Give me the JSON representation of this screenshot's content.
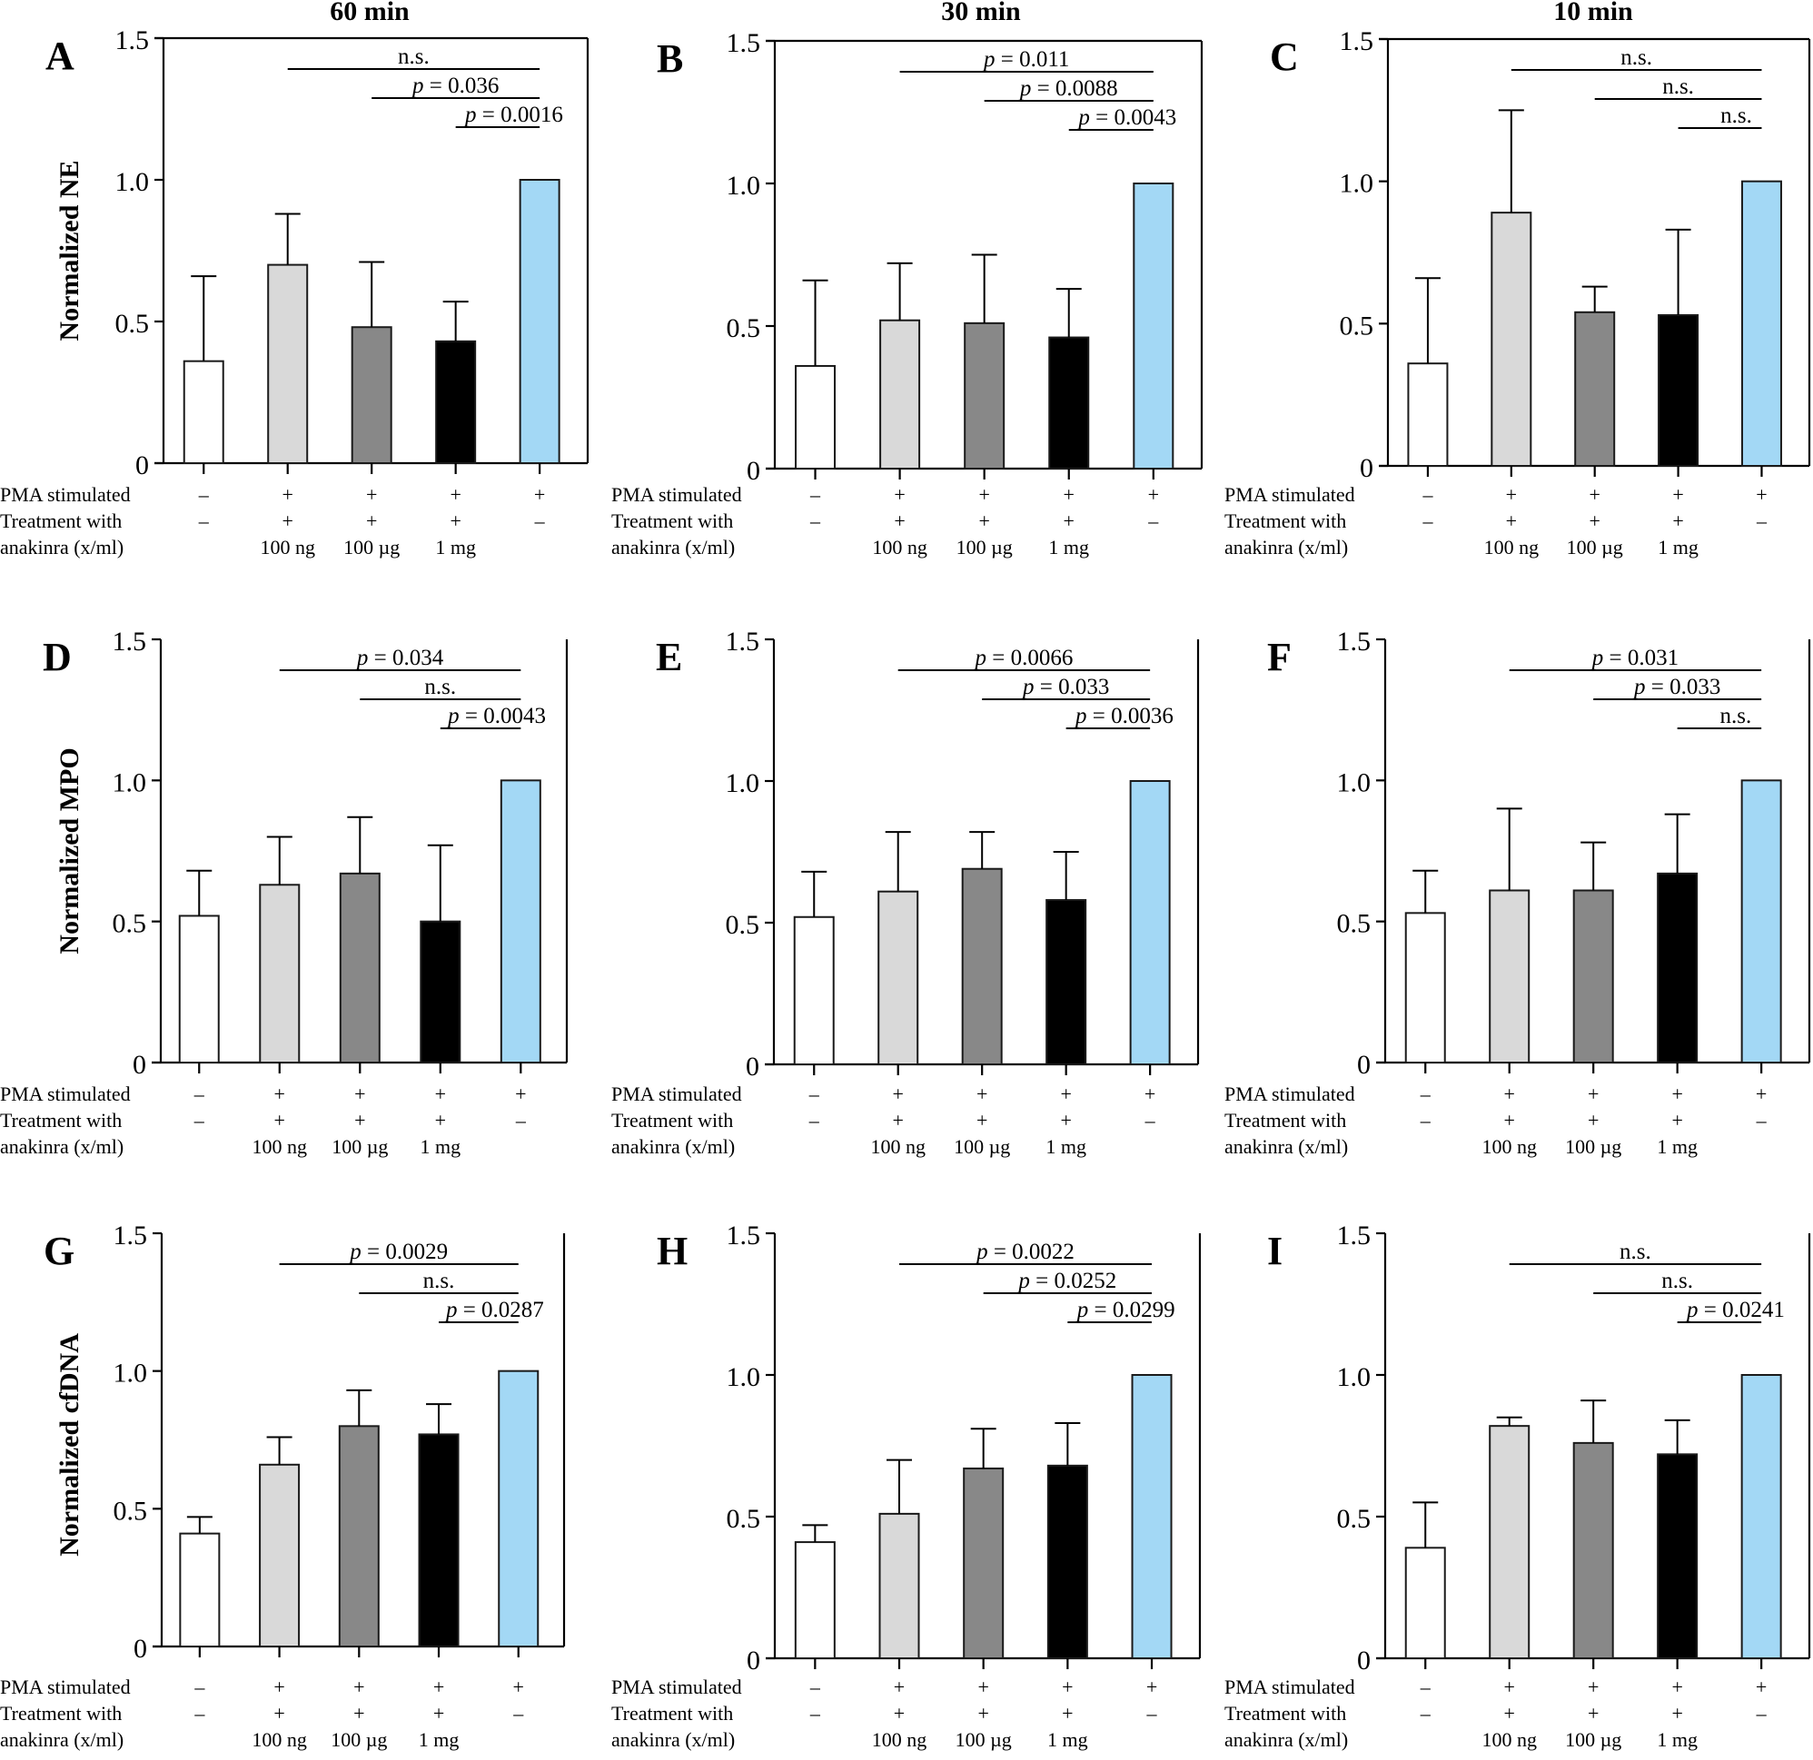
{
  "figure": {
    "column_titles": [
      "60 min",
      "30 min",
      "10 min"
    ],
    "row_ylabels": [
      "Normalized NE",
      "Normalized MPO",
      "Normalized cfDNA"
    ],
    "group_colors": [
      "#ffffff",
      "#d9d9d9",
      "#888888",
      "#000000",
      "#a3d8f5"
    ],
    "condition_rows": {
      "labels": [
        "PMA stimulated",
        "Treatment with",
        "anakinra (x/ml)"
      ],
      "pma": [
        "–",
        "+",
        "+",
        "+",
        "+"
      ],
      "treatment": [
        "–",
        "+",
        "+",
        "+",
        "–"
      ],
      "dose": [
        "",
        "100 ng",
        "100 µg",
        "1 mg",
        ""
      ]
    }
  },
  "chart_data": [
    {
      "panel": "A",
      "type": "bar",
      "title": "60 min",
      "ylabel": "Normalized NE",
      "categories": [
        "PMA –, no anakinra",
        "PMA +, anakinra 100 ng",
        "PMA +, anakinra 100 µg",
        "PMA +, anakinra 1 mg",
        "PMA +, no anakinra"
      ],
      "values": [
        0.36,
        0.7,
        0.48,
        0.43,
        1.0
      ],
      "error_upper": [
        0.66,
        0.88,
        0.71,
        0.57,
        null
      ],
      "ylim": [
        0,
        1.5
      ],
      "yticks": [
        "0",
        "0.5",
        "1.0",
        "1.5"
      ],
      "comparisons": [
        {
          "from": 1,
          "to": 4,
          "label": "n.s."
        },
        {
          "from": 2,
          "to": 4,
          "label": "p = 0.036"
        },
        {
          "from": 3,
          "to": 4,
          "label": "p = 0.0016"
        }
      ]
    },
    {
      "panel": "B",
      "type": "bar",
      "title": "30 min",
      "ylabel": "Normalized NE",
      "categories": [
        "PMA –, no anakinra",
        "PMA +, anakinra 100 ng",
        "PMA +, anakinra 100 µg",
        "PMA +, anakinra 1 mg",
        "PMA +, no anakinra"
      ],
      "values": [
        0.36,
        0.52,
        0.51,
        0.46,
        1.0
      ],
      "error_upper": [
        0.66,
        0.72,
        0.75,
        0.63,
        null
      ],
      "ylim": [
        0,
        1.5
      ],
      "yticks": [
        "0",
        "0.5",
        "1.0",
        "1.5"
      ],
      "comparisons": [
        {
          "from": 1,
          "to": 4,
          "label": "p = 0.011"
        },
        {
          "from": 2,
          "to": 4,
          "label": "p = 0.0088"
        },
        {
          "from": 3,
          "to": 4,
          "label": "p = 0.0043"
        }
      ]
    },
    {
      "panel": "C",
      "type": "bar",
      "title": "10 min",
      "ylabel": "Normalized NE",
      "categories": [
        "PMA –, no anakinra",
        "PMA +, anakinra 100 ng",
        "PMA +, anakinra 100 µg",
        "PMA +, anakinra 1 mg",
        "PMA +, no anakinra"
      ],
      "values": [
        0.36,
        0.89,
        0.54,
        0.53,
        1.0
      ],
      "error_upper": [
        0.66,
        1.25,
        0.63,
        0.83,
        null
      ],
      "ylim": [
        0,
        1.5
      ],
      "yticks": [
        "0",
        "0.5",
        "1.0",
        "1.5"
      ],
      "comparisons": [
        {
          "from": 1,
          "to": 4,
          "label": "n.s."
        },
        {
          "from": 2,
          "to": 4,
          "label": "n.s."
        },
        {
          "from": 3,
          "to": 4,
          "label": "n.s."
        }
      ]
    },
    {
      "panel": "D",
      "type": "bar",
      "title": "60 min",
      "ylabel": "Normalized MPO",
      "categories": [
        "PMA –, no anakinra",
        "PMA +, anakinra 100 ng",
        "PMA +, anakinra 100 µg",
        "PMA +, anakinra 1 mg",
        "PMA +, no anakinra"
      ],
      "values": [
        0.52,
        0.63,
        0.67,
        0.5,
        1.0
      ],
      "error_upper": [
        0.68,
        0.8,
        0.87,
        0.77,
        null
      ],
      "ylim": [
        0,
        1.5
      ],
      "yticks": [
        "0",
        "0.5",
        "1.0",
        "1.5"
      ],
      "comparisons": [
        {
          "from": 1,
          "to": 4,
          "label": "p = 0.034"
        },
        {
          "from": 2,
          "to": 4,
          "label": "n.s."
        },
        {
          "from": 3,
          "to": 4,
          "label": "p = 0.0043"
        }
      ]
    },
    {
      "panel": "E",
      "type": "bar",
      "title": "30 min",
      "ylabel": "Normalized MPO",
      "categories": [
        "PMA –, no anakinra",
        "PMA +, anakinra 100 ng",
        "PMA +, anakinra 100 µg",
        "PMA +, anakinra 1 mg",
        "PMA +, no anakinra"
      ],
      "values": [
        0.52,
        0.61,
        0.69,
        0.58,
        1.0
      ],
      "error_upper": [
        0.68,
        0.82,
        0.82,
        0.75,
        null
      ],
      "ylim": [
        0,
        1.5
      ],
      "yticks": [
        "0",
        "0.5",
        "1.0",
        "1.5"
      ],
      "comparisons": [
        {
          "from": 1,
          "to": 4,
          "label": "p = 0.0066"
        },
        {
          "from": 2,
          "to": 4,
          "label": "p = 0.033"
        },
        {
          "from": 3,
          "to": 4,
          "label": "p = 0.0036"
        }
      ]
    },
    {
      "panel": "F",
      "type": "bar",
      "title": "10 min",
      "ylabel": "Normalized MPO",
      "categories": [
        "PMA –, no anakinra",
        "PMA +, anakinra 100 ng",
        "PMA +, anakinra 100 µg",
        "PMA +, anakinra 1 mg",
        "PMA +, no anakinra"
      ],
      "values": [
        0.53,
        0.61,
        0.61,
        0.67,
        1.0
      ],
      "error_upper": [
        0.68,
        0.9,
        0.78,
        0.88,
        null
      ],
      "ylim": [
        0,
        1.5
      ],
      "yticks": [
        "0",
        "0.5",
        "1.0",
        "1.5"
      ],
      "comparisons": [
        {
          "from": 1,
          "to": 4,
          "label": "p = 0.031"
        },
        {
          "from": 2,
          "to": 4,
          "label": "p = 0.033"
        },
        {
          "from": 3,
          "to": 4,
          "label": "n.s."
        }
      ]
    },
    {
      "panel": "G",
      "type": "bar",
      "title": "60 min",
      "ylabel": "Normalized cfDNA",
      "categories": [
        "PMA –, no anakinra",
        "PMA +, anakinra 100 ng",
        "PMA +, anakinra 100 µg",
        "PMA +, anakinra 1 mg",
        "PMA +, no anakinra"
      ],
      "values": [
        0.41,
        0.66,
        0.8,
        0.77,
        1.0
      ],
      "error_upper": [
        0.47,
        0.76,
        0.93,
        0.88,
        null
      ],
      "ylim": [
        0,
        1.5
      ],
      "yticks": [
        "0",
        "0.5",
        "1.0",
        "1.5"
      ],
      "comparisons": [
        {
          "from": 1,
          "to": 4,
          "label": "p = 0.0029"
        },
        {
          "from": 2,
          "to": 4,
          "label": "n.s."
        },
        {
          "from": 3,
          "to": 4,
          "label": "p = 0.0287"
        }
      ]
    },
    {
      "panel": "H",
      "type": "bar",
      "title": "30 min",
      "ylabel": "Normalized cfDNA",
      "categories": [
        "PMA –, no anakinra",
        "PMA +, anakinra 100 ng",
        "PMA +, anakinra 100 µg",
        "PMA +, anakinra 1 mg",
        "PMA +, no anakinra"
      ],
      "values": [
        0.41,
        0.51,
        0.67,
        0.68,
        1.0
      ],
      "error_upper": [
        0.47,
        0.7,
        0.81,
        0.83,
        null
      ],
      "ylim": [
        0,
        1.5
      ],
      "yticks": [
        "0",
        "0.5",
        "1.0",
        "1.5"
      ],
      "comparisons": [
        {
          "from": 1,
          "to": 4,
          "label": "p = 0.0022"
        },
        {
          "from": 2,
          "to": 4,
          "label": "p = 0.0252"
        },
        {
          "from": 3,
          "to": 4,
          "label": "p = 0.0299"
        }
      ]
    },
    {
      "panel": "I",
      "type": "bar",
      "title": "10 min",
      "ylabel": "Normalized cfDNA",
      "categories": [
        "PMA –, no anakinra",
        "PMA +, anakinra 100 ng",
        "PMA +, anakinra 100 µg",
        "PMA +, anakinra 1 mg",
        "PMA +, no anakinra"
      ],
      "values": [
        0.39,
        0.82,
        0.76,
        0.72,
        1.0
      ],
      "error_upper": [
        0.55,
        0.85,
        0.91,
        0.84,
        null
      ],
      "ylim": [
        0,
        1.5
      ],
      "yticks": [
        "0",
        "0.5",
        "1.0",
        "1.5"
      ],
      "comparisons": [
        {
          "from": 1,
          "to": 4,
          "label": "n.s."
        },
        {
          "from": 2,
          "to": 4,
          "label": "n.s."
        },
        {
          "from": 3,
          "to": 4,
          "label": "p = 0.0241"
        }
      ]
    }
  ]
}
